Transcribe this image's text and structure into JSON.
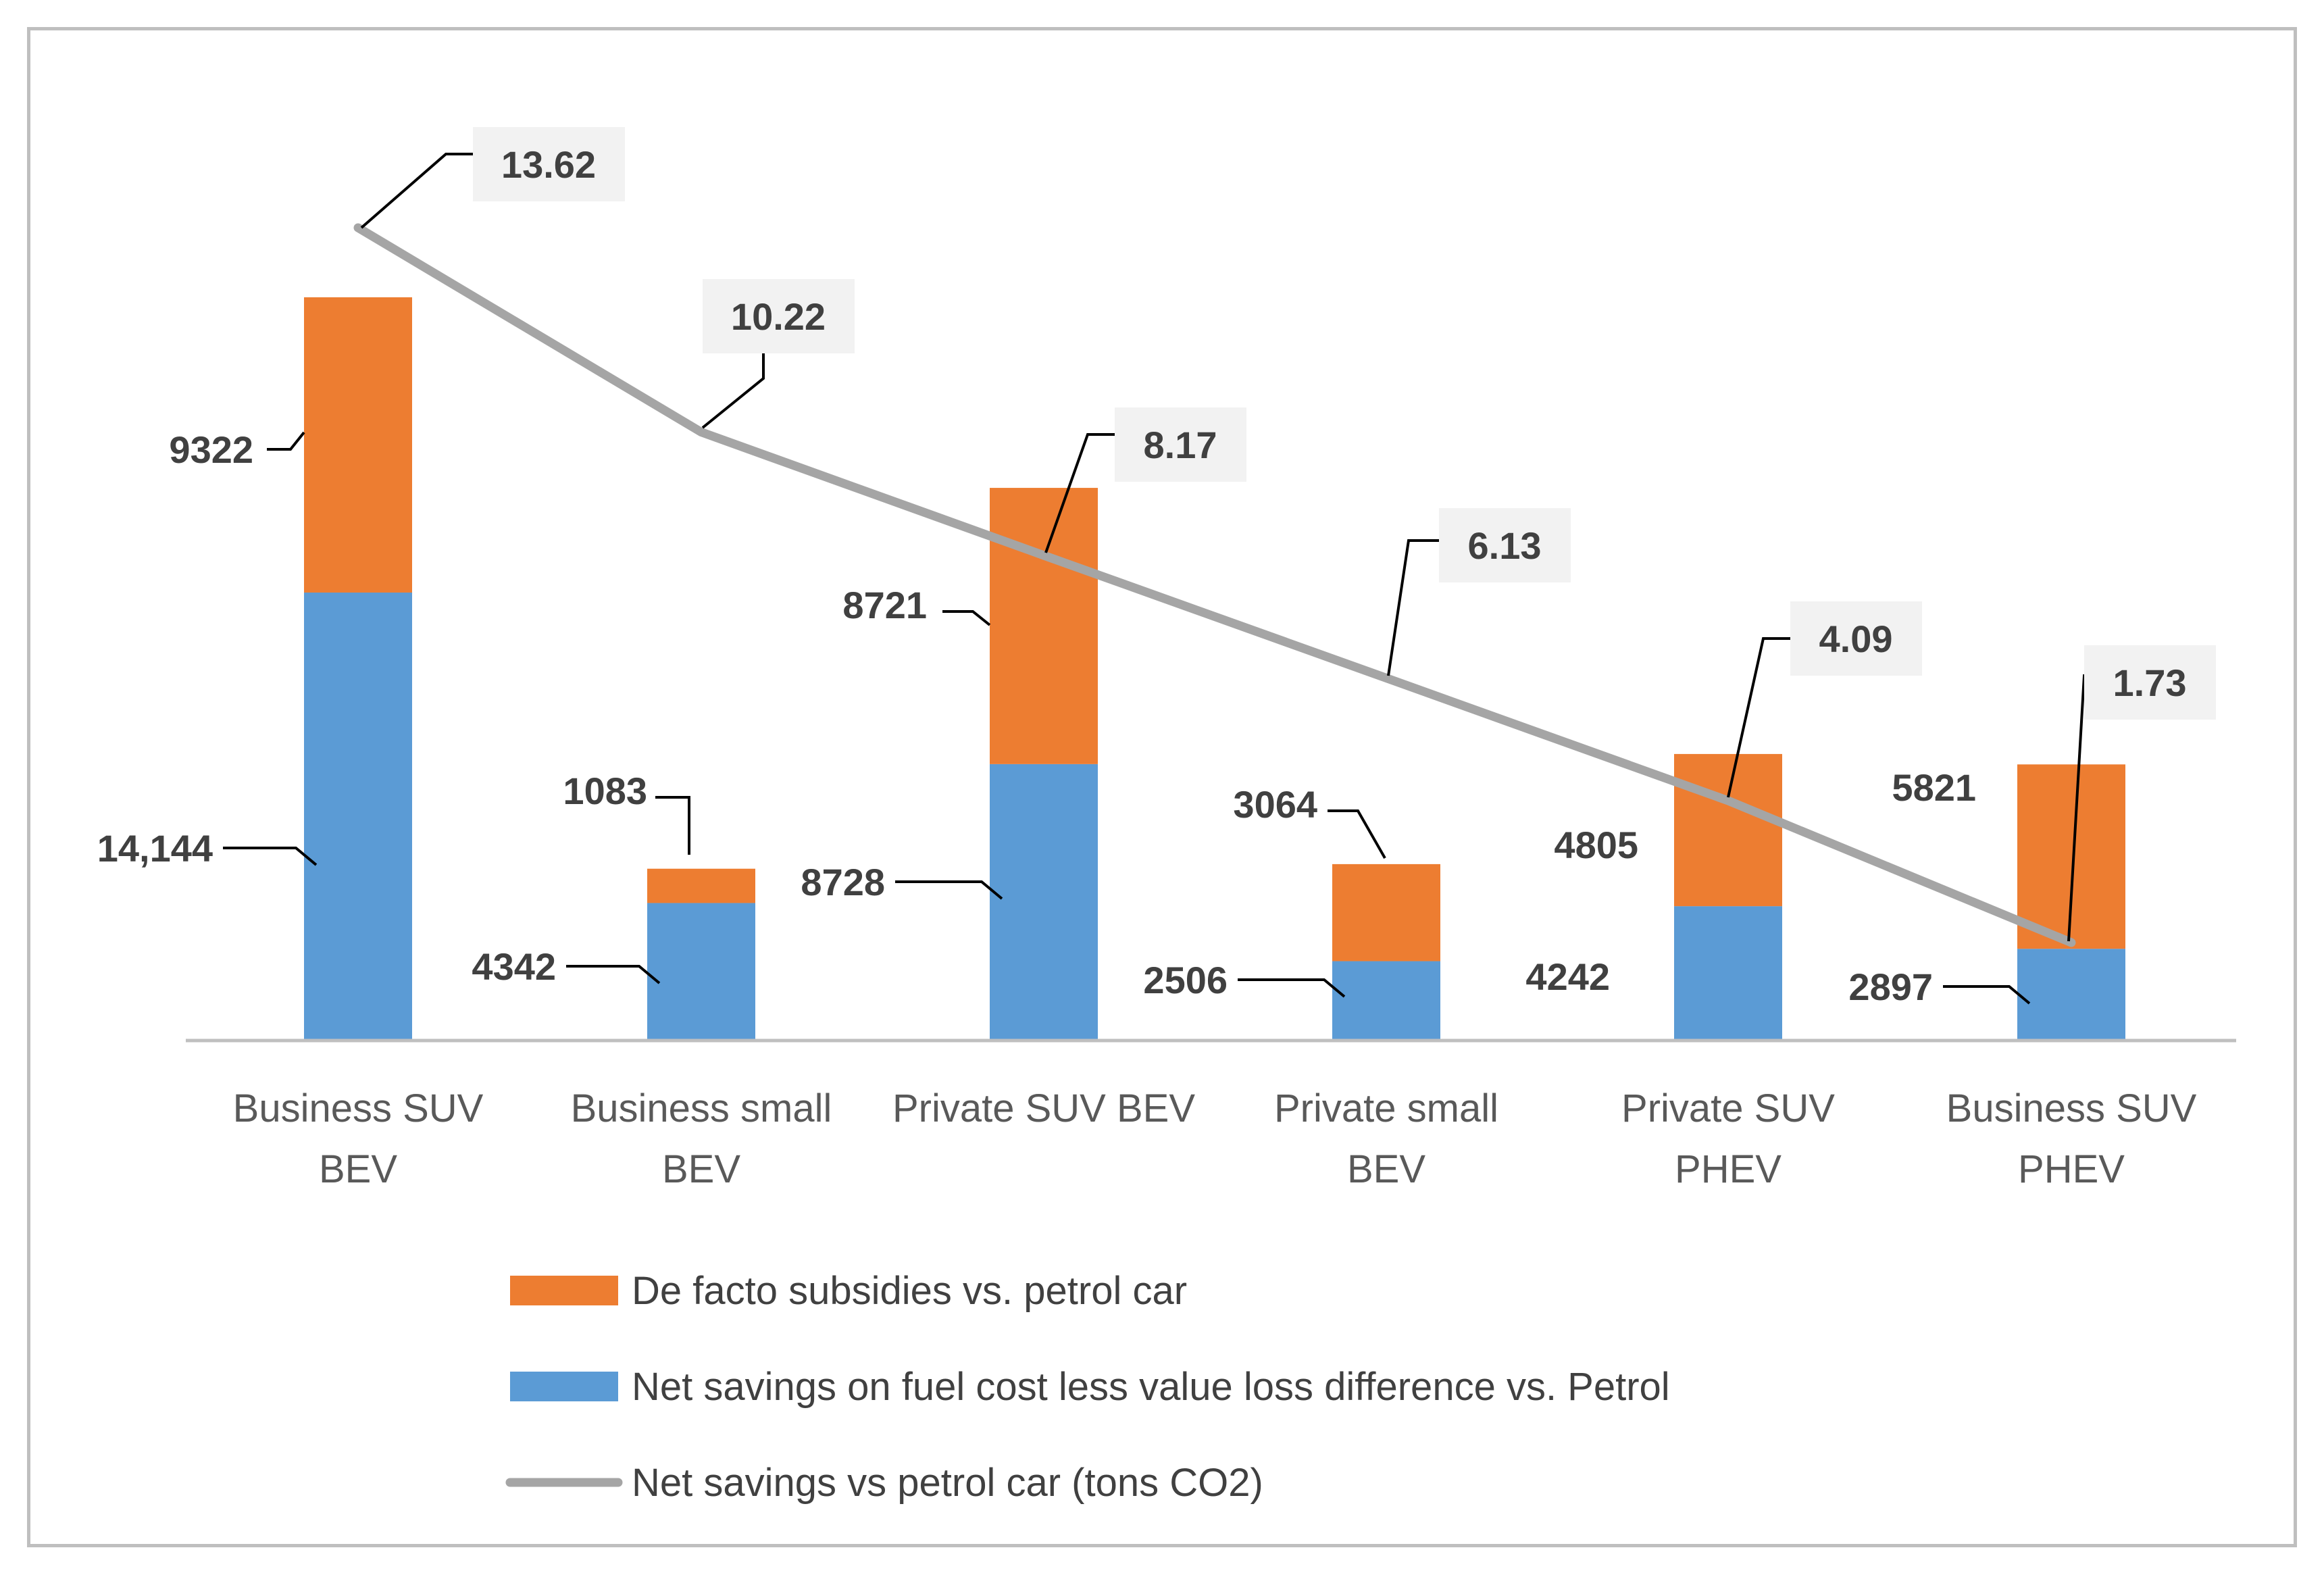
{
  "chart_data": {
    "type": "bar",
    "stacked": true,
    "categories": [
      [
        "Business SUV",
        "BEV"
      ],
      [
        "Business small",
        "BEV"
      ],
      [
        "Private SUV BEV"
      ],
      [
        "Private small",
        "BEV"
      ],
      [
        "Private SUV",
        "PHEV"
      ],
      [
        "Business SUV",
        "PHEV"
      ]
    ],
    "series": [
      {
        "name": "Net savings on fuel cost less value loss difference vs. Petrol",
        "color": "#5b9bd5",
        "values": [
          14144,
          4342,
          8728,
          2506,
          4242,
          2897
        ],
        "labels": [
          "14,144",
          "4342",
          "8728",
          "2506",
          "4242",
          "2897"
        ]
      },
      {
        "name": "De facto subsidies vs. petrol car",
        "color": "#ed7d31",
        "values": [
          9322,
          1083,
          8721,
          3064,
          4805,
          5821
        ],
        "labels": [
          "9322",
          "1083",
          "8721",
          "3064",
          "4805",
          "5821"
        ]
      }
    ],
    "line_series": {
      "name": "Net savings vs petrol car (tons CO2)",
      "color": "#a5a5a5",
      "values": [
        13.62,
        10.22,
        8.17,
        6.13,
        4.09,
        1.73
      ],
      "labels": [
        "13.62",
        "10.22",
        "8.17",
        "6.13",
        "4.09",
        "1.73"
      ],
      "axis": "secondary"
    },
    "ylim": [
      0,
      25000
    ],
    "legend_position": "bottom",
    "grid": false,
    "title": "",
    "xlabel": "",
    "ylabel": ""
  }
}
